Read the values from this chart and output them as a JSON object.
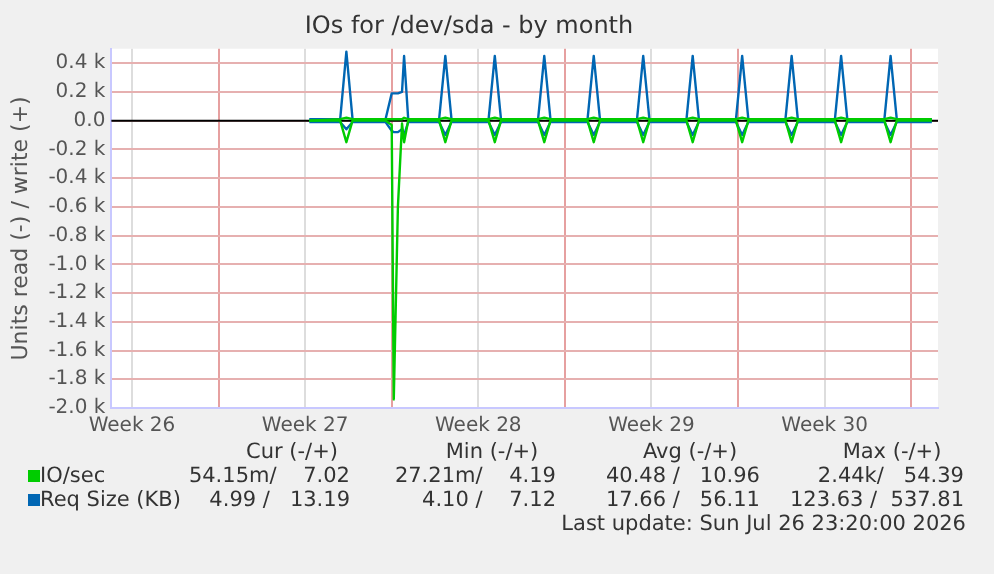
{
  "chart_data": {
    "type": "line",
    "title": "IOs for /dev/sda - by month",
    "ylabel": "Units read (-) / write (+)",
    "x": [
      "2026-07-02T16:00",
      "2026-07-03T22:00",
      "2026-07-04T04:00",
      "2026-07-04T10:00",
      "2026-07-05T18:00",
      "2026-07-06T00:00",
      "2026-07-06T02:00",
      "2026-07-06T06:00",
      "2026-07-06T10:00",
      "2026-07-06T12:00",
      "2026-07-06T16:00",
      "2026-07-07T22:00",
      "2026-07-08T04:00",
      "2026-07-08T10:00",
      "2026-07-09T22:00",
      "2026-07-10T04:00",
      "2026-07-10T10:00",
      "2026-07-11T22:00",
      "2026-07-12T04:00",
      "2026-07-12T10:00",
      "2026-07-13T22:00",
      "2026-07-14T04:00",
      "2026-07-14T10:00",
      "2026-07-15T22:00",
      "2026-07-16T04:00",
      "2026-07-16T10:00",
      "2026-07-17T22:00",
      "2026-07-18T04:00",
      "2026-07-18T10:00",
      "2026-07-19T22:00",
      "2026-07-20T04:00",
      "2026-07-20T10:00",
      "2026-07-21T22:00",
      "2026-07-22T04:00",
      "2026-07-22T10:00",
      "2026-07-23T22:00",
      "2026-07-24T04:00",
      "2026-07-24T10:00",
      "2026-07-25T22:00",
      "2026-07-26T04:00",
      "2026-07-26T10:00",
      "2026-07-27T20:00"
    ],
    "series": [
      {
        "color": "#00cc00",
        "values": [
          0,
          0,
          -150,
          0,
          0,
          -30,
          -1940,
          -600,
          -20,
          -150,
          0,
          0,
          -150,
          0,
          0,
          -150,
          0,
          0,
          -150,
          0,
          0,
          -150,
          0,
          0,
          -150,
          0,
          0,
          -150,
          0,
          0,
          -150,
          0,
          0,
          -150,
          0,
          0,
          -150,
          0,
          0,
          -150,
          0,
          0
        ]
      },
      {
        "name": "IO/sec",
        "color": "#00cc00",
        "values": [
          0,
          10,
          20,
          10,
          10,
          10,
          10,
          10,
          10,
          20,
          10,
          10,
          20,
          10,
          10,
          20,
          10,
          10,
          20,
          10,
          10,
          20,
          10,
          10,
          20,
          10,
          10,
          20,
          10,
          10,
          20,
          10,
          10,
          20,
          10,
          10,
          20,
          10,
          10,
          20,
          10,
          10
        ]
      },
      {
        "color": "#0066b3",
        "values": [
          -10,
          -10,
          -60,
          -10,
          -10,
          -70,
          -80,
          -80,
          -60,
          -100,
          -10,
          -10,
          -100,
          -10,
          -10,
          -100,
          -10,
          -10,
          -100,
          -10,
          -10,
          -100,
          -10,
          -10,
          -100,
          -10,
          -10,
          -100,
          -10,
          -10,
          -100,
          -10,
          -10,
          -100,
          -10,
          -10,
          -100,
          -10,
          -10,
          -100,
          -10,
          -10
        ]
      },
      {
        "name": "Req Size (KB)",
        "color": "#0066b3",
        "values": [
          10,
          10,
          480,
          10,
          10,
          190,
          190,
          190,
          200,
          450,
          10,
          10,
          450,
          10,
          10,
          450,
          10,
          10,
          450,
          10,
          10,
          450,
          10,
          10,
          450,
          10,
          10,
          450,
          10,
          10,
          450,
          10,
          10,
          450,
          10,
          10,
          450,
          10,
          10,
          450,
          10,
          10
        ]
      }
    ],
    "xlim": [
      "2026-06-24T16:00",
      "2026-07-28T02:00"
    ],
    "xticks": [
      {
        "value": "2026-06-25T12:00",
        "label": "Week 26"
      },
      {
        "value": "2026-06-29T00:00",
        "label": null
      },
      {
        "value": "2026-07-02T12:00",
        "label": "Week 27"
      },
      {
        "value": "2026-07-06T00:00",
        "label": null
      },
      {
        "value": "2026-07-09T12:00",
        "label": "Week 28"
      },
      {
        "value": "2026-07-13T00:00",
        "label": null
      },
      {
        "value": "2026-07-16T12:00",
        "label": "Week 29"
      },
      {
        "value": "2026-07-20T00:00",
        "label": null
      },
      {
        "value": "2026-07-23T12:00",
        "label": "Week 30"
      },
      {
        "value": "2026-07-27T00:00",
        "label": null
      }
    ],
    "ylim": [
      -2000,
      500
    ],
    "yticks": [
      {
        "value": -2000,
        "label": "-2.0 k"
      },
      {
        "value": -1800,
        "label": "-1.8 k"
      },
      {
        "value": -1600,
        "label": "-1.6 k"
      },
      {
        "value": -1400,
        "label": "-1.4 k"
      },
      {
        "value": -1200,
        "label": "-1.2 k"
      },
      {
        "value": -1000,
        "label": "-1.0 k"
      },
      {
        "value": -800,
        "label": "-0.8 k"
      },
      {
        "value": -600,
        "label": "-0.6 k"
      },
      {
        "value": -400,
        "label": "-0.4 k"
      },
      {
        "value": -200,
        "label": "-0.2 k"
      },
      {
        "value": 0,
        "label": "0.0"
      },
      {
        "value": 200,
        "label": "0.2 k"
      },
      {
        "value": 400,
        "label": "0.4 k"
      }
    ],
    "ref_lines": [
      {
        "axis": "y",
        "value": 0,
        "color": "#000000"
      }
    ],
    "grid": true,
    "legend": "bottom",
    "marker": "none",
    "line_style": "solid",
    "annotations": [
      "Cur (-/+)",
      "Min (-/+)",
      "Avg (-/+)",
      "Max (-/+)",
      "54.15m/    7.02",
      "27.21m/    4.19",
      "40.48 /   10.96",
      "2.44k/   54.39",
      "4.99 /   13.19",
      "4.10 /    7.12",
      "17.66 /   56.11",
      "123.63 /  537.81",
      "Last update: Sun Jul 26 23:20:00 2026"
    ]
  }
}
